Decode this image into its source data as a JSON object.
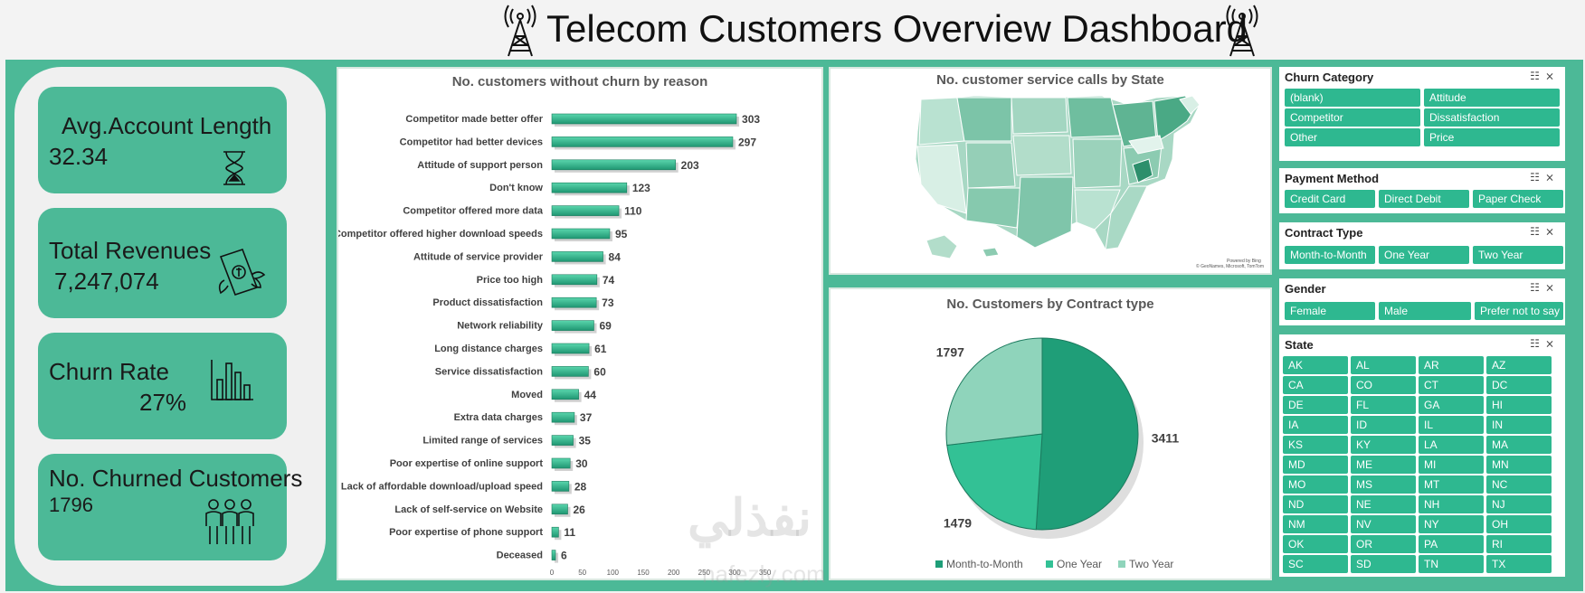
{
  "header": {
    "title": "Telecom Customers Overview Dashboard"
  },
  "kpis": {
    "avg_account_length": {
      "label": "Avg.Account Length",
      "value": "32.34",
      "icon": "hourglass-icon"
    },
    "total_revenues": {
      "label": "Total Revenues",
      "value": "7,247,074",
      "icon": "money-icon"
    },
    "churn_rate": {
      "label": "Churn Rate",
      "value": "27%",
      "icon": "bar-chart-icon"
    },
    "churned_customers": {
      "label": "No. Churned Customers",
      "value": "1796",
      "icon": "people-icon"
    }
  },
  "bar_chart_panel": {
    "title": "No. customers without churn by reason"
  },
  "map_panel": {
    "title": "No. customer service calls by State",
    "credit_line1": "Powered by Bing",
    "credit_line2": "© GeoNames, Microsoft, TomTom"
  },
  "pie_panel": {
    "title": "No. Customers by Contract type"
  },
  "chart_data": [
    {
      "type": "bar",
      "title": "No. customers without churn by reason",
      "orientation": "horizontal",
      "categories": [
        "Competitor made better offer",
        "Competitor had better devices",
        "Attitude of support person",
        "Don't know",
        "Competitor offered more data",
        "Competitor offered higher download speeds",
        "Attitude of service provider",
        "Price too high",
        "Product dissatisfaction",
        "Network reliability",
        "Long distance charges",
        "Service dissatisfaction",
        "Moved",
        "Extra data charges",
        "Limited range of services",
        "Poor expertise of online support",
        "Lack of affordable download/upload speed",
        "Lack of self-service on Website",
        "Poor expertise of phone support",
        "Deceased"
      ],
      "values": [
        303,
        297,
        203,
        123,
        110,
        95,
        84,
        74,
        73,
        69,
        61,
        60,
        44,
        37,
        35,
        30,
        28,
        26,
        11,
        6
      ],
      "xlim": [
        0,
        350
      ],
      "xticks": [
        "0",
        "50",
        "100",
        "150",
        "200",
        "250",
        "300",
        "350"
      ],
      "colors": {
        "bar": "#2ea882",
        "bar_light": "#4fd0a6"
      }
    },
    {
      "type": "pie",
      "title": "No. Customers by Contract type",
      "labels": [
        "Month-to-Month",
        "One Year",
        "Two Year"
      ],
      "values": [
        3411,
        1479,
        1797
      ],
      "colors": [
        "#1f9e78",
        "#33c195",
        "#8fd4bb"
      ]
    }
  ],
  "slicers": {
    "churn_category": {
      "title": "Churn Category",
      "items": [
        "(blank)",
        "Attitude",
        "Competitor",
        "Dissatisfaction",
        "Other",
        "Price"
      ]
    },
    "payment_method": {
      "title": "Payment Method",
      "items": [
        "Credit Card",
        "Direct Debit",
        "Paper Check"
      ]
    },
    "contract_type": {
      "title": "Contract Type",
      "items": [
        "Month-to-Month",
        "One Year",
        "Two Year"
      ]
    },
    "gender": {
      "title": "Gender",
      "items": [
        "Female",
        "Male",
        "Prefer not to say"
      ]
    },
    "state": {
      "title": "State",
      "items": [
        "AK",
        "AL",
        "AR",
        "AZ",
        "CA",
        "CO",
        "CT",
        "DC",
        "DE",
        "FL",
        "GA",
        "HI",
        "IA",
        "ID",
        "IL",
        "IN",
        "KS",
        "KY",
        "LA",
        "MA",
        "MD",
        "ME",
        "MI",
        "MN",
        "MO",
        "MS",
        "MT",
        "NC",
        "ND",
        "NE",
        "NH",
        "NJ",
        "NM",
        "NV",
        "NY",
        "OH",
        "OK",
        "OR",
        "PA",
        "RI",
        "SC",
        "SD",
        "TN",
        "TX"
      ]
    }
  },
  "watermark": {
    "text": "نفذلي",
    "sub": "nafezly.com"
  },
  "colors": {
    "accent": "#4cb997",
    "chip": "#2eb890"
  }
}
